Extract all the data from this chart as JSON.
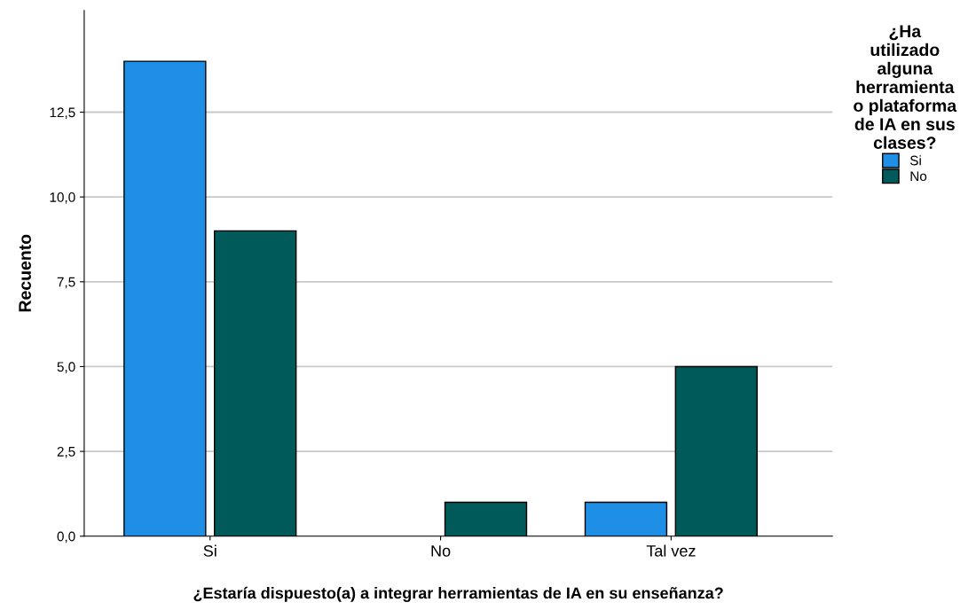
{
  "chart_data": {
    "type": "bar",
    "xlabel": "¿Estaría dispuesto(a) a integrar herramientas de IA en su enseñanza?",
    "ylabel": "Recuento",
    "legend_title": "¿Ha\nutilizado\nalguna\nherramienta\no plataforma\nde IA en sus\nclases?",
    "categories": [
      "Si",
      "No",
      "Tal vez"
    ],
    "series": [
      {
        "name": "Si",
        "color": "#1f8fe5",
        "values": [
          14,
          null,
          1
        ]
      },
      {
        "name": "No",
        "color": "#005a5a",
        "values": [
          9,
          1,
          5
        ]
      }
    ],
    "ylim": [
      0,
      15.5
    ],
    "yticks": [
      {
        "value": 0,
        "label": "0,0"
      },
      {
        "value": 2.5,
        "label": "2,5"
      },
      {
        "value": 5,
        "label": "5,0"
      },
      {
        "value": 7.5,
        "label": "7,5"
      },
      {
        "value": 10,
        "label": "10,0"
      },
      {
        "value": 12.5,
        "label": "12,5"
      }
    ],
    "grid": "y",
    "legend": "top right"
  }
}
